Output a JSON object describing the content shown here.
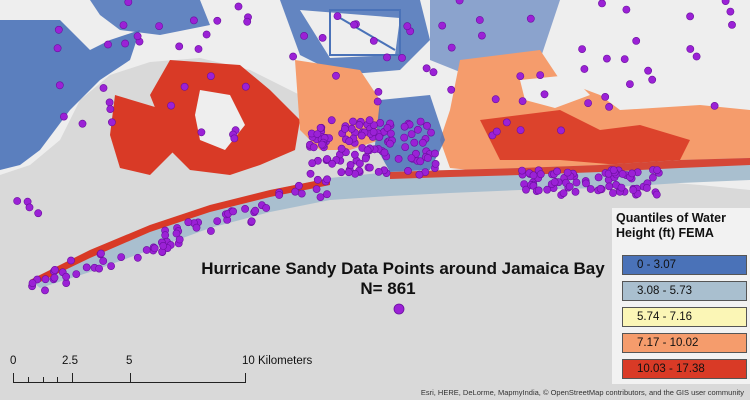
{
  "map": {
    "title_line1": "Hurricane Sandy Data Points around Jamaica Bay",
    "title_line2": "N= 861",
    "colors": {
      "water": "#d9d9d9",
      "land": "#eeeeee",
      "point": "#9b21d6",
      "point_stroke": "#6a0f9e"
    }
  },
  "legend": {
    "title_line1": "Quantiles of Water",
    "title_line2": "Height (ft) FEMA",
    "items": [
      {
        "label": "0 - 3.07",
        "color": "#4a72b8"
      },
      {
        "label": "3.08 - 5.73",
        "color": "#a9bfcf"
      },
      {
        "label": "5.74 - 7.16",
        "color": "#fbf6b6"
      },
      {
        "label": "7.17 - 10.02",
        "color": "#f59c6c"
      },
      {
        "label": "10.03 - 17.38",
        "color": "#d93a26"
      }
    ]
  },
  "scale_bar": {
    "ticks": [
      "0",
      "2.5",
      "5",
      "10 Kilometers"
    ]
  },
  "attribution": "Esri, HERE, DeLorme, MapmyIndia, © OpenStreetMap contributors, and the GIS user community"
}
